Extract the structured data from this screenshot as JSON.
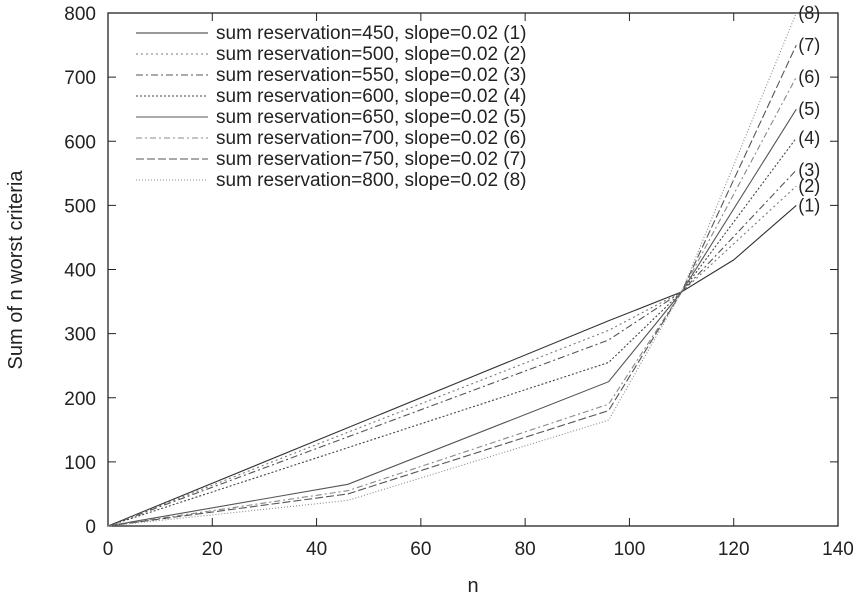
{
  "chart_data": {
    "type": "line",
    "xlabel": "n",
    "ylabel": "Sum of n worst criteria",
    "xlim": [
      0,
      140
    ],
    "ylim": [
      0,
      800
    ],
    "xticks": [
      "0",
      "20",
      "40",
      "60",
      "80",
      "100",
      "120",
      "140"
    ],
    "yticks": [
      "0",
      "100",
      "200",
      "300",
      "400",
      "500",
      "600",
      "700",
      "800"
    ],
    "grid": false,
    "legend_position": "top-left",
    "series": [
      {
        "name": "sum reservation=450, slope=0.02 (1)",
        "end_label": "(1)",
        "dash": "",
        "color": "#333333",
        "x": [
          0,
          96,
          110,
          120,
          132
        ],
        "y": [
          0,
          320,
          365,
          415,
          500
        ]
      },
      {
        "name": "sum reservation=500, slope=0.02 (2)",
        "end_label": "(2)",
        "dash": "2,3",
        "color": "#777777",
        "x": [
          0,
          96,
          110,
          132
        ],
        "y": [
          0,
          305,
          365,
          530
        ]
      },
      {
        "name": "sum reservation=550, slope=0.02 (3)",
        "end_label": "(3)",
        "dash": "7,3,2,3",
        "color": "#555555",
        "x": [
          0,
          96,
          110,
          132
        ],
        "y": [
          0,
          290,
          365,
          555
        ]
      },
      {
        "name": "sum reservation=600, slope=0.02 (4)",
        "end_label": "(4)",
        "dash": "2,2",
        "color": "#444444",
        "x": [
          0,
          96,
          110,
          132
        ],
        "y": [
          0,
          255,
          365,
          605
        ]
      },
      {
        "name": "sum reservation=650, slope=0.02 (5)",
        "end_label": "(5)",
        "dash": "",
        "color": "#555555",
        "x": [
          0,
          46,
          96,
          110,
          132
        ],
        "y": [
          0,
          65,
          225,
          365,
          650
        ]
      },
      {
        "name": "sum reservation=700, slope=0.02 (6)",
        "end_label": "(6)",
        "dash": "6,3,2,3",
        "color": "#888888",
        "x": [
          0,
          46,
          96,
          110,
          132
        ],
        "y": [
          0,
          55,
          190,
          365,
          700
        ]
      },
      {
        "name": "sum reservation=750, slope=0.02 (7)",
        "end_label": "(7)",
        "dash": "8,3",
        "color": "#555555",
        "x": [
          0,
          46,
          96,
          110,
          132
        ],
        "y": [
          0,
          50,
          180,
          365,
          750
        ]
      },
      {
        "name": "sum reservation=800, slope=0.02 (8)",
        "end_label": "(8)",
        "dash": "1,2",
        "color": "#888888",
        "x": [
          0,
          46,
          96,
          110,
          132
        ],
        "y": [
          0,
          40,
          165,
          365,
          800
        ]
      }
    ]
  }
}
